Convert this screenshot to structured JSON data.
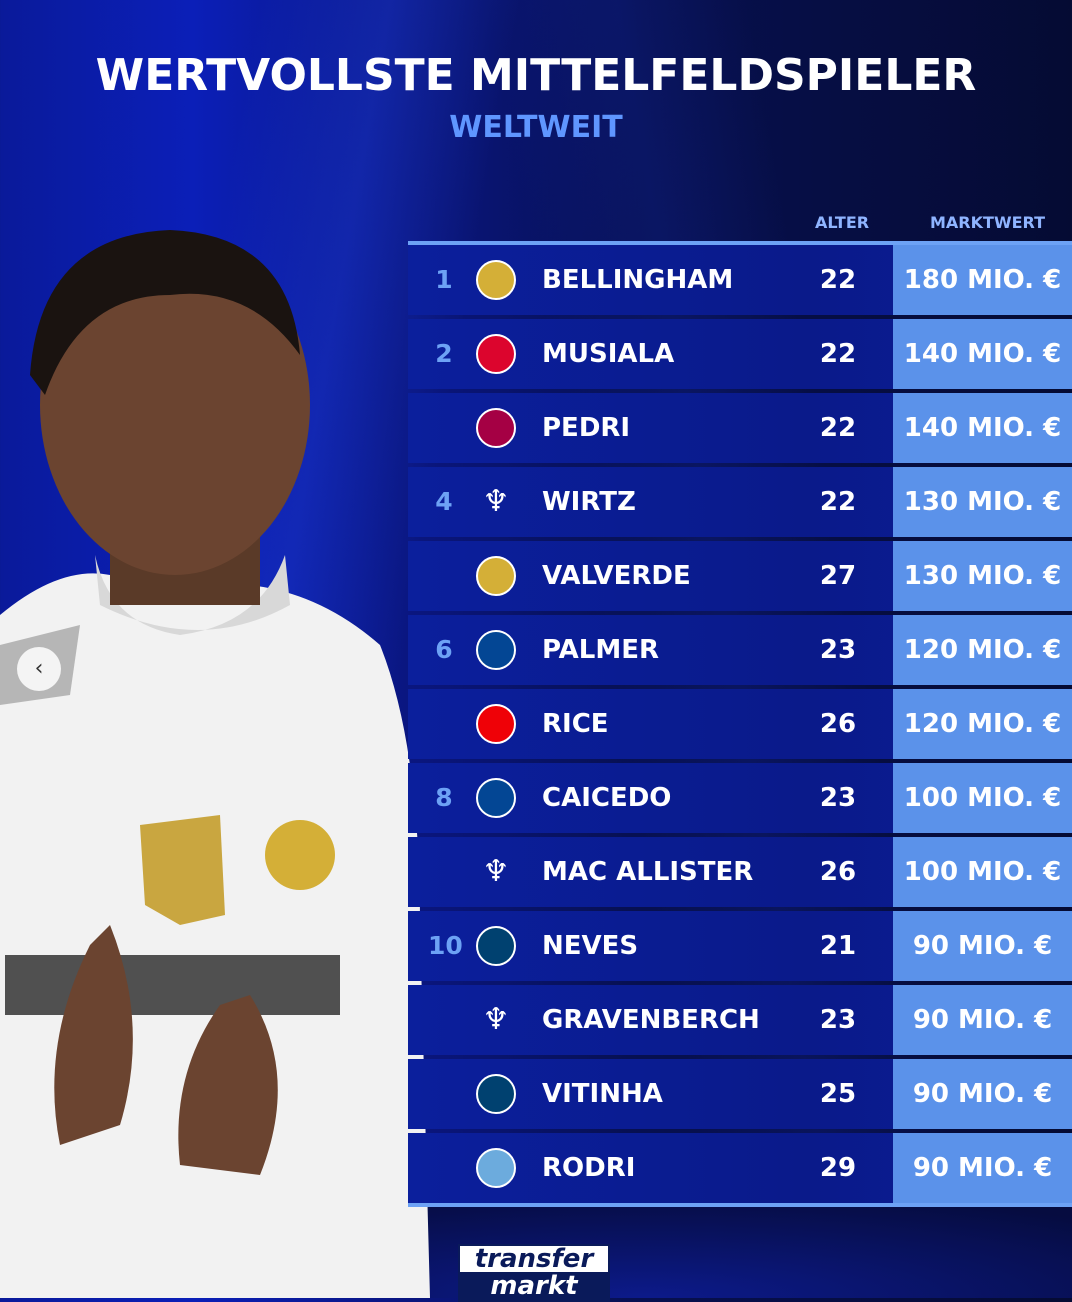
{
  "title": "WERTVOLLSTE MITTELFELDSPIELER",
  "subtitle": "WELTWEIT",
  "columns": {
    "age": "ALTER",
    "value": "MARKTWERT"
  },
  "colors": {
    "accent": "#5f96ff",
    "value_cell": "#5b92ea",
    "row": "#0b1f9c"
  },
  "rows": [
    {
      "rank": "1",
      "club": "real-madrid",
      "crest_color": "#d4af37",
      "name": "BELLINGHAM",
      "age": "22",
      "value": "180 MIO. €"
    },
    {
      "rank": "2",
      "club": "bayern",
      "crest_color": "#dc052d",
      "name": "MUSIALA",
      "age": "22",
      "value": "140 MIO. €"
    },
    {
      "rank": "",
      "club": "barcelona",
      "crest_color": "#a50044",
      "name": "PEDRI",
      "age": "22",
      "value": "140 MIO. €"
    },
    {
      "rank": "4",
      "club": "liverpool",
      "crest_color": "#ffffff",
      "name": "WIRTZ",
      "age": "22",
      "value": "130 MIO. €"
    },
    {
      "rank": "",
      "club": "real-madrid",
      "crest_color": "#d4af37",
      "name": "VALVERDE",
      "age": "27",
      "value": "130 MIO. €"
    },
    {
      "rank": "6",
      "club": "chelsea",
      "crest_color": "#034694",
      "name": "PALMER",
      "age": "23",
      "value": "120 MIO. €"
    },
    {
      "rank": "",
      "club": "arsenal",
      "crest_color": "#ef0107",
      "name": "RICE",
      "age": "26",
      "value": "120 MIO. €"
    },
    {
      "rank": "8",
      "club": "chelsea",
      "crest_color": "#034694",
      "name": "CAICEDO",
      "age": "23",
      "value": "100 MIO. €"
    },
    {
      "rank": "",
      "club": "liverpool",
      "crest_color": "#ffffff",
      "name": "MAC ALLISTER",
      "age": "26",
      "value": "100 MIO. €"
    },
    {
      "rank": "10",
      "club": "psg",
      "crest_color": "#004170",
      "name": "NEVES",
      "age": "21",
      "value": "90 MIO. €"
    },
    {
      "rank": "",
      "club": "liverpool",
      "crest_color": "#ffffff",
      "name": "GRAVENBERCH",
      "age": "23",
      "value": "90 MIO. €"
    },
    {
      "rank": "",
      "club": "psg",
      "crest_color": "#004170",
      "name": "VITINHA",
      "age": "25",
      "value": "90 MIO. €"
    },
    {
      "rank": "",
      "club": "man-city",
      "crest_color": "#6cabdd",
      "name": "RODRI",
      "age": "29",
      "value": "90 MIO. €"
    }
  ],
  "logo": {
    "line1": "transfer",
    "line2": "markt"
  },
  "nav": {
    "prev_icon": "chevron-left-icon",
    "prev_glyph": "‹"
  }
}
